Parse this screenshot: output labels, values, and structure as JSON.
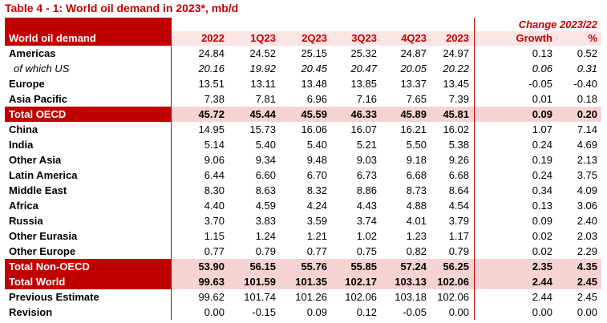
{
  "title": "Table 4 - 1: World oil demand in 2023*, mb/d",
  "change_header": "Change 2023/22",
  "columns": [
    "World oil demand",
    "2022",
    "1Q23",
    "2Q23",
    "3Q23",
    "4Q23",
    "2023",
    "Growth",
    "%"
  ],
  "rows": [
    {
      "label": "Americas",
      "values": [
        "24.84",
        "24.52",
        "25.15",
        "25.32",
        "24.87",
        "24.97",
        "0.13",
        "0.52"
      ],
      "style": "normal"
    },
    {
      "label": "of which US",
      "values": [
        "20.16",
        "19.92",
        "20.45",
        "20.47",
        "20.05",
        "20.22",
        "0.06",
        "0.31"
      ],
      "style": "italic"
    },
    {
      "label": "Europe",
      "values": [
        "13.51",
        "13.11",
        "13.48",
        "13.85",
        "13.37",
        "13.45",
        "-0.05",
        "-0.40"
      ],
      "style": "normal"
    },
    {
      "label": "Asia Pacific",
      "values": [
        "7.38",
        "7.81",
        "6.96",
        "7.16",
        "7.65",
        "7.39",
        "0.01",
        "0.18"
      ],
      "style": "normal"
    },
    {
      "label": "Total OECD",
      "values": [
        "45.72",
        "45.44",
        "45.59",
        "46.33",
        "45.89",
        "45.81",
        "0.09",
        "0.20"
      ],
      "style": "total"
    },
    {
      "label": "China",
      "values": [
        "14.95",
        "15.73",
        "16.06",
        "16.07",
        "16.21",
        "16.02",
        "1.07",
        "7.14"
      ],
      "style": "normal"
    },
    {
      "label": "India",
      "values": [
        "5.14",
        "5.40",
        "5.40",
        "5.21",
        "5.50",
        "5.38",
        "0.24",
        "4.69"
      ],
      "style": "normal"
    },
    {
      "label": "Other Asia",
      "values": [
        "9.06",
        "9.34",
        "9.48",
        "9.03",
        "9.18",
        "9.26",
        "0.19",
        "2.13"
      ],
      "style": "normal"
    },
    {
      "label": "Latin America",
      "values": [
        "6.44",
        "6.60",
        "6.70",
        "6.73",
        "6.68",
        "6.68",
        "0.24",
        "3.75"
      ],
      "style": "normal"
    },
    {
      "label": "Middle East",
      "values": [
        "8.30",
        "8.63",
        "8.32",
        "8.86",
        "8.73",
        "8.64",
        "0.34",
        "4.09"
      ],
      "style": "normal"
    },
    {
      "label": "Africa",
      "values": [
        "4.40",
        "4.59",
        "4.24",
        "4.43",
        "4.88",
        "4.54",
        "0.13",
        "3.06"
      ],
      "style": "normal"
    },
    {
      "label": "Russia",
      "values": [
        "3.70",
        "3.83",
        "3.59",
        "3.74",
        "4.01",
        "3.79",
        "0.09",
        "2.40"
      ],
      "style": "normal"
    },
    {
      "label": "Other Eurasia",
      "values": [
        "1.15",
        "1.24",
        "1.21",
        "1.02",
        "1.23",
        "1.17",
        "0.02",
        "2.03"
      ],
      "style": "normal"
    },
    {
      "label": "Other Europe",
      "values": [
        "0.77",
        "0.79",
        "0.77",
        "0.75",
        "0.82",
        "0.79",
        "0.02",
        "2.29"
      ],
      "style": "normal"
    },
    {
      "label": "Total Non-OECD",
      "values": [
        "53.90",
        "56.15",
        "55.76",
        "55.85",
        "57.24",
        "56.25",
        "2.35",
        "4.35"
      ],
      "style": "total"
    },
    {
      "label": "Total World",
      "values": [
        "99.63",
        "101.59",
        "101.35",
        "102.17",
        "103.13",
        "102.06",
        "2.44",
        "2.45"
      ],
      "style": "total"
    },
    {
      "label": "Previous Estimate",
      "values": [
        "99.62",
        "101.74",
        "101.26",
        "102.06",
        "103.18",
        "102.06",
        "2.44",
        "2.45"
      ],
      "style": "normal"
    },
    {
      "label": "Revision",
      "values": [
        "0.00",
        "-0.15",
        "0.09",
        "0.12",
        "-0.05",
        "0.00",
        "0.00",
        "0.00"
      ],
      "style": "normal"
    }
  ],
  "colors": {
    "accent": "#c00000",
    "highlight_fill": "#f6d3d3"
  }
}
